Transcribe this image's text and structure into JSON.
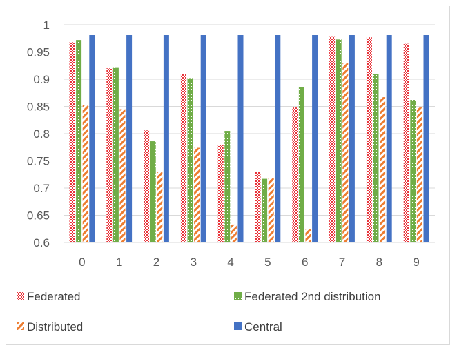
{
  "chart_data": {
    "type": "bar",
    "categories": [
      "0",
      "1",
      "2",
      "3",
      "4",
      "5",
      "6",
      "7",
      "8",
      "9"
    ],
    "series": [
      {
        "name": "Federated",
        "values": [
          0.968,
          0.92,
          0.806,
          0.909,
          0.779,
          0.73,
          0.848,
          0.979,
          0.977,
          0.965
        ],
        "color": "#e8333a",
        "pattern": "checker"
      },
      {
        "name": "Federated 2nd distribution",
        "values": [
          0.972,
          0.922,
          0.786,
          0.902,
          0.805,
          0.717,
          0.885,
          0.973,
          0.91,
          0.862
        ],
        "color": "#70ad47",
        "pattern": "dotted"
      },
      {
        "name": "Distributed",
        "values": [
          0.853,
          0.845,
          0.73,
          0.774,
          0.633,
          0.718,
          0.625,
          0.93,
          0.867,
          0.848
        ],
        "color": "#ed7d31",
        "pattern": "diagonal"
      },
      {
        "name": "Central",
        "values": [
          0.981,
          0.981,
          0.981,
          0.981,
          0.981,
          0.981,
          0.981,
          0.981,
          0.981,
          0.981
        ],
        "color": "#4472c4",
        "pattern": "solid"
      }
    ],
    "yticks": [
      "0.6",
      "0.65",
      "0.7",
      "0.75",
      "0.8",
      "0.85",
      "0.9",
      "0.95",
      "1"
    ],
    "ylim": [
      0.6,
      1.0
    ],
    "grid": true,
    "legend_position": "bottom"
  }
}
